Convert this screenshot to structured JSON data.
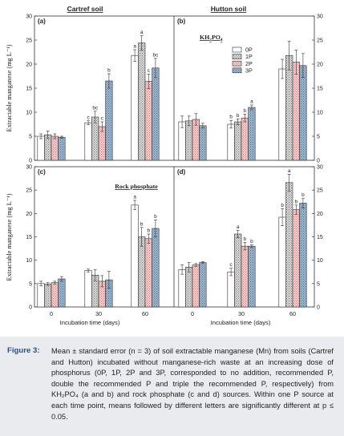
{
  "figure": {
    "panel_titles": {
      "left": "Cartref soil",
      "right": "Hutton soil"
    },
    "source_labels": {
      "top": "KH2PO4",
      "bottom": "Rock phosphate"
    },
    "ylabel": "Extractable manganese  (mg L⁻¹)",
    "xlabel": "Incubation time (days)",
    "legend": [
      "0P",
      "1P",
      "2P",
      "3P"
    ]
  },
  "chart_data": [
    {
      "type": "bar",
      "panel": "(a)",
      "categories": [
        "0",
        "30",
        "60"
      ],
      "series": [
        {
          "name": "0P",
          "values": [
            5.0,
            7.8,
            21.8
          ],
          "errors": [
            0.5,
            0.4,
            1.2
          ],
          "letters": [
            "",
            "c",
            "a"
          ]
        },
        {
          "name": "1P",
          "values": [
            5.3,
            9.0,
            24.4
          ],
          "errors": [
            0.8,
            1.2,
            1.5
          ],
          "letters": [
            "",
            "bc",
            "a"
          ]
        },
        {
          "name": "2P",
          "values": [
            5.0,
            7.0,
            16.4
          ],
          "errors": [
            0.5,
            1.0,
            1.5
          ],
          "letters": [
            "",
            "c",
            "c"
          ]
        },
        {
          "name": "3P",
          "values": [
            4.8,
            16.5,
            19.2
          ],
          "errors": [
            0.2,
            1.5,
            2.0
          ],
          "letters": [
            "",
            "b",
            "bc"
          ]
        }
      ],
      "ylim": [
        0,
        30
      ]
    },
    {
      "type": "bar",
      "panel": "(b)",
      "categories": [
        "0",
        "30",
        "60"
      ],
      "series": [
        {
          "name": "0P",
          "values": [
            8.0,
            7.5,
            19.0
          ],
          "errors": [
            1.2,
            0.8,
            2.0
          ],
          "letters": [
            "",
            "b",
            ""
          ]
        },
        {
          "name": "1P",
          "values": [
            8.2,
            8.0,
            21.8
          ],
          "errors": [
            1.0,
            0.6,
            3.0
          ],
          "letters": [
            "",
            "b",
            ""
          ]
        },
        {
          "name": "2P",
          "values": [
            8.5,
            8.8,
            20.4
          ],
          "errors": [
            1.2,
            0.8,
            2.5
          ],
          "letters": [
            "",
            "b",
            ""
          ]
        },
        {
          "name": "3P",
          "values": [
            7.2,
            11.0,
            19.7
          ],
          "errors": [
            0.5,
            0.5,
            2.5
          ],
          "letters": [
            "",
            "a",
            ""
          ]
        }
      ],
      "ylim": [
        0,
        30
      ]
    },
    {
      "type": "bar",
      "panel": "(c)",
      "categories": [
        "0",
        "30",
        "60"
      ],
      "series": [
        {
          "name": "0P",
          "values": [
            5.0,
            7.8,
            21.8
          ],
          "errors": [
            0.5,
            0.3,
            1.0
          ],
          "letters": [
            "",
            "",
            "a"
          ]
        },
        {
          "name": "1P",
          "values": [
            4.9,
            6.8,
            15.0
          ],
          "errors": [
            0.3,
            1.2,
            2.0
          ],
          "letters": [
            "",
            "",
            "b"
          ]
        },
        {
          "name": "2P",
          "values": [
            5.2,
            5.5,
            14.6
          ],
          "errors": [
            0.3,
            1.2,
            1.0
          ],
          "letters": [
            "",
            "",
            "b"
          ]
        },
        {
          "name": "3P",
          "values": [
            6.0,
            5.8,
            16.8
          ],
          "errors": [
            0.5,
            1.8,
            1.8
          ],
          "letters": [
            "",
            "",
            "b"
          ]
        }
      ],
      "ylim": [
        0,
        30
      ]
    },
    {
      "type": "bar",
      "panel": "(d)",
      "categories": [
        "0",
        "30",
        "60"
      ],
      "series": [
        {
          "name": "0P",
          "values": [
            8.0,
            7.5,
            19.2
          ],
          "errors": [
            1.0,
            0.8,
            1.8
          ],
          "letters": [
            "",
            "c",
            "b"
          ]
        },
        {
          "name": "1P",
          "values": [
            8.5,
            15.6,
            26.6
          ],
          "errors": [
            1.0,
            0.8,
            1.8
          ],
          "letters": [
            "",
            "a",
            "a"
          ]
        },
        {
          "name": "2P",
          "values": [
            9.0,
            13.0,
            20.8
          ],
          "errors": [
            0.3,
            0.8,
            1.0
          ],
          "letters": [
            "",
            "b",
            "b"
          ]
        },
        {
          "name": "3P",
          "values": [
            9.5,
            13.0,
            22.2
          ],
          "errors": [
            0.2,
            0.3,
            1.0
          ],
          "letters": [
            "",
            "b",
            "b"
          ]
        }
      ],
      "ylim": [
        0,
        30
      ]
    }
  ],
  "caption": {
    "label": "Figure 3:",
    "text": "Mean ± standard error (n = 3) of soil extractable manganese (Mn) from soils (Cartref and Hutton) incubated without manganese-rich waste at an increasing dose of phosphorus (0P, 1P, 2P and 3P, corresponded to no addition, recommended P, double the recommended P and triple the recommended P, respectively) from KH₂PO₄ (a and b) and rock phosphate (c and d) sources. Within one P source at each time point, means followed by different letters are significantly different at p ≤ 0.05."
  }
}
